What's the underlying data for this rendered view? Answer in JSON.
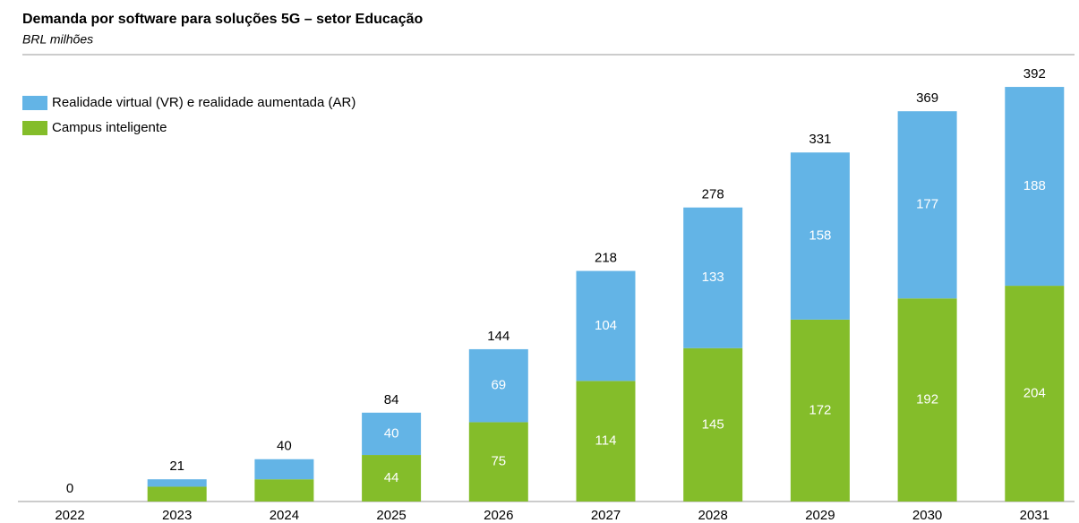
{
  "chart_data": {
    "type": "stacked_bar",
    "title": "Demanda por software para soluções 5G – setor Educação",
    "subtitle": "BRL milhões",
    "categories": [
      "2022",
      "2023",
      "2024",
      "2025",
      "2026",
      "2027",
      "2028",
      "2029",
      "2030",
      "2031"
    ],
    "series": [
      {
        "name": "Campus inteligente",
        "color": "#84bd2a",
        "values": [
          0,
          14,
          21,
          44,
          75,
          114,
          145,
          172,
          192,
          204
        ]
      },
      {
        "name": "Realidade virtual (VR) e realidade aumentada (AR)",
        "color": "#63b4e6",
        "values": [
          0,
          7,
          19,
          40,
          69,
          104,
          133,
          158,
          177,
          188
        ]
      }
    ],
    "totals": [
      0,
      21,
      40,
      84,
      144,
      218,
      278,
      331,
      369,
      392
    ],
    "ylim": [
      0,
      400
    ],
    "legend": "top-left"
  }
}
